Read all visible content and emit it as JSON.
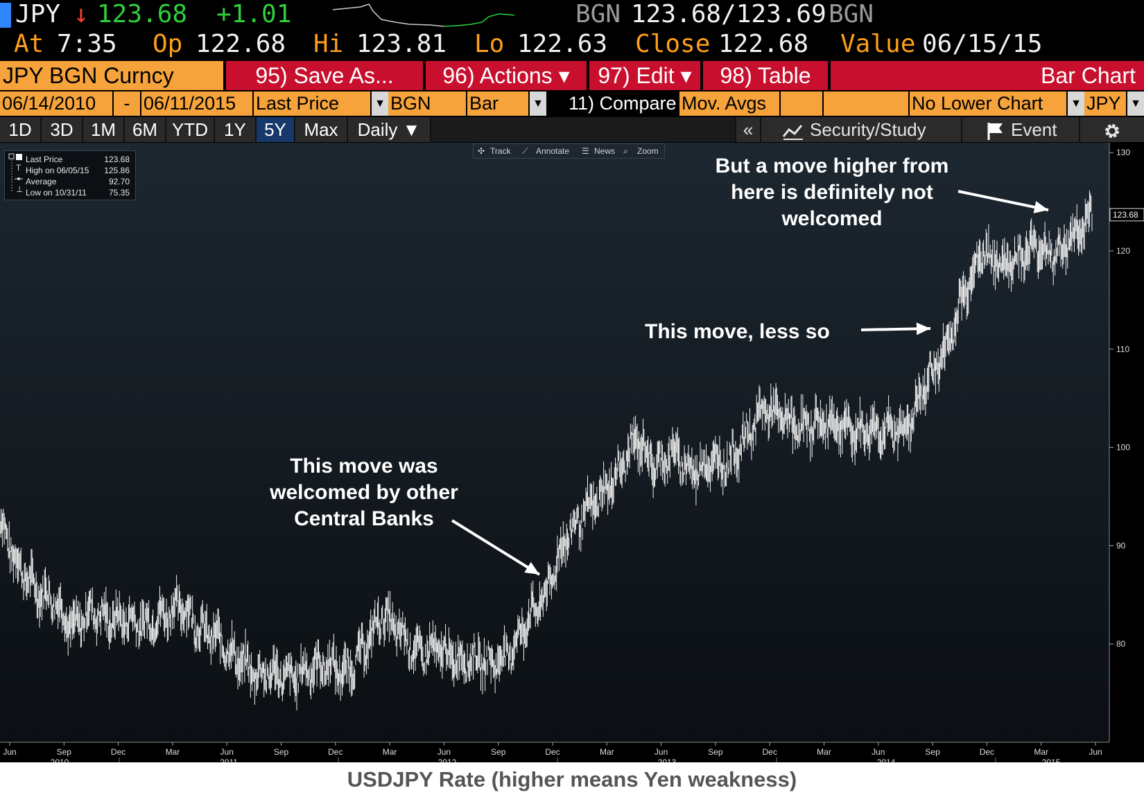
{
  "header": {
    "ticker": "JPY",
    "down_arrow": "↓",
    "last": "123.68",
    "change": "+1.01",
    "source_left": "BGN",
    "bid_ask": "123.68/123.69",
    "source_right": "BGN",
    "at_label": "At",
    "at_value": "7:35",
    "op_label": "Op",
    "op_value": "122.68",
    "hi_label": "Hi",
    "hi_value": "123.81",
    "lo_label": "Lo",
    "lo_value": "122.63",
    "close_label": "Close",
    "close_value": "122.68",
    "value_label": "Value",
    "value_value": "06/15/15",
    "spark_color_up": "#2fd03b"
  },
  "toolbar": {
    "security": "JPY BGN Curncy",
    "save_as": "95) Save As...",
    "actions": "96) Actions ▾",
    "edit": "97) Edit ▾",
    "table": "98) Table",
    "chart_type_title": "Bar Chart"
  },
  "params": {
    "start_date": "06/14/2010",
    "dash": "-",
    "end_date": "06/11/2015",
    "field": "Last Price",
    "source": "BGN",
    "style": "Bar",
    "compare": "11) Compare",
    "mov_avgs": "Mov. Avgs",
    "lower_chart": "No Lower Chart",
    "currency": "JPY"
  },
  "ranges": {
    "tabs": [
      "1D",
      "3D",
      "1M",
      "6M",
      "YTD",
      "1Y",
      "5Y",
      "Max",
      "Daily ▼"
    ],
    "active": "5Y",
    "collapse": "«",
    "security_study": "Security/Study",
    "event": "Event",
    "settings_icon": "gear-icon"
  },
  "chart_tools": {
    "track": "Track",
    "annotate": "Annotate",
    "news": "News",
    "zoom": "Zoom"
  },
  "legend": {
    "rows": [
      {
        "label": "Last Price",
        "value": "123.68"
      },
      {
        "label": "High on 06/05/15",
        "value": "125.86"
      },
      {
        "label": "Average",
        "value": "92.70"
      },
      {
        "label": "Low on 10/31/11",
        "value": "75.35"
      }
    ]
  },
  "annotations": {
    "a1": [
      "This move was",
      "welcomed by other",
      "Central Banks"
    ],
    "a2": "This move, less so",
    "a3": [
      "But a move higher from",
      "here is definitely not",
      "welcomed"
    ]
  },
  "caption": "USDJPY Rate (higher means Yen weakness)",
  "chart_data": {
    "type": "bar",
    "title": "",
    "ylim": [
      70,
      131
    ],
    "yticks": [
      80,
      90,
      100,
      110,
      120,
      130
    ],
    "last_label": "123.68",
    "month_ticks": [
      "Jun",
      "Sep",
      "Dec",
      "Mar",
      "Jun",
      "Sep",
      "Dec",
      "Mar",
      "Jun",
      "Sep",
      "Dec",
      "Mar",
      "Jun",
      "Sep",
      "Dec",
      "Mar",
      "Jun",
      "Sep",
      "Dec",
      "Mar",
      "Jun"
    ],
    "year_labels": [
      "2010",
      "2011",
      "2012",
      "2013",
      "2014",
      "2015"
    ],
    "x": [
      "2010-06",
      "2010-07",
      "2010-08",
      "2010-09",
      "2010-10",
      "2010-11",
      "2010-12",
      "2011-01",
      "2011-02",
      "2011-03",
      "2011-04",
      "2011-05",
      "2011-06",
      "2011-07",
      "2011-08",
      "2011-09",
      "2011-10",
      "2011-11",
      "2011-12",
      "2012-01",
      "2012-02",
      "2012-03",
      "2012-04",
      "2012-05",
      "2012-06",
      "2012-07",
      "2012-08",
      "2012-09",
      "2012-10",
      "2012-11",
      "2012-12",
      "2013-01",
      "2013-02",
      "2013-03",
      "2013-04",
      "2013-05",
      "2013-06",
      "2013-07",
      "2013-08",
      "2013-09",
      "2013-10",
      "2013-11",
      "2013-12",
      "2014-01",
      "2014-02",
      "2014-03",
      "2014-04",
      "2014-05",
      "2014-06",
      "2014-07",
      "2014-08",
      "2014-09",
      "2014-10",
      "2014-11",
      "2014-12",
      "2015-01",
      "2015-02",
      "2015-03",
      "2015-04",
      "2015-05",
      "2015-06"
    ],
    "values": [
      92.5,
      88.0,
      85.5,
      84.5,
      81.5,
      83.5,
      82.5,
      82.5,
      82.0,
      83.0,
      84.0,
      81.5,
      80.5,
      78.5,
      77.0,
      77.0,
      76.5,
      77.5,
      78.0,
      77.0,
      79.5,
      83.0,
      81.0,
      79.0,
      79.5,
      78.5,
      78.5,
      78.0,
      79.0,
      82.5,
      85.0,
      90.5,
      93.0,
      95.0,
      97.5,
      101.0,
      98.0,
      99.5,
      97.5,
      98.5,
      98.5,
      101.0,
      104.0,
      103.0,
      102.0,
      102.5,
      102.5,
      101.5,
      102.0,
      101.5,
      102.5,
      107.0,
      110.0,
      116.0,
      120.0,
      118.5,
      119.5,
      120.5,
      119.5,
      121.5,
      123.7
    ]
  }
}
